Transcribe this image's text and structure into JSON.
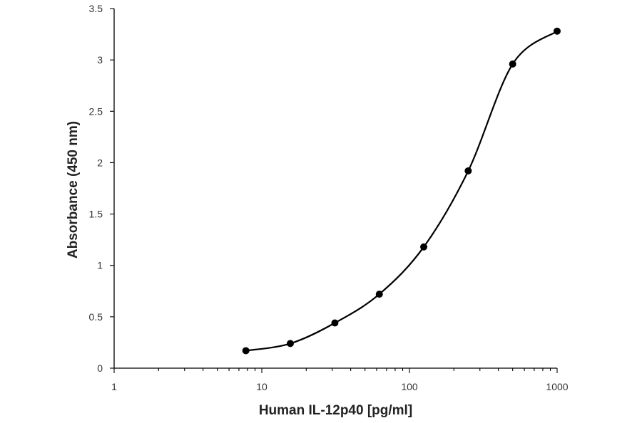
{
  "chart_data": {
    "type": "scatter",
    "title": "",
    "xlabel": "Human IL-12p40 [pg/ml]",
    "ylabel": "Absorbance (450 nm)",
    "x_scale": "log",
    "xlim": [
      1,
      1000
    ],
    "ylim": [
      0,
      3.5
    ],
    "x_ticks": [
      "1",
      "10",
      "100",
      "1000"
    ],
    "y_ticks": [
      "0",
      "0.5",
      "1",
      "1.5",
      "2",
      "2.5",
      "3",
      "3.5"
    ],
    "grid": false,
    "legend": "none",
    "series": [
      {
        "x": [
          7.8,
          15.6,
          31.25,
          62.5,
          125,
          250,
          500,
          1000
        ],
        "y": [
          0.17,
          0.24,
          0.44,
          0.72,
          1.18,
          1.92,
          2.96,
          3.28
        ],
        "marker": "circle",
        "line": "smooth",
        "color": "#000000"
      }
    ]
  }
}
